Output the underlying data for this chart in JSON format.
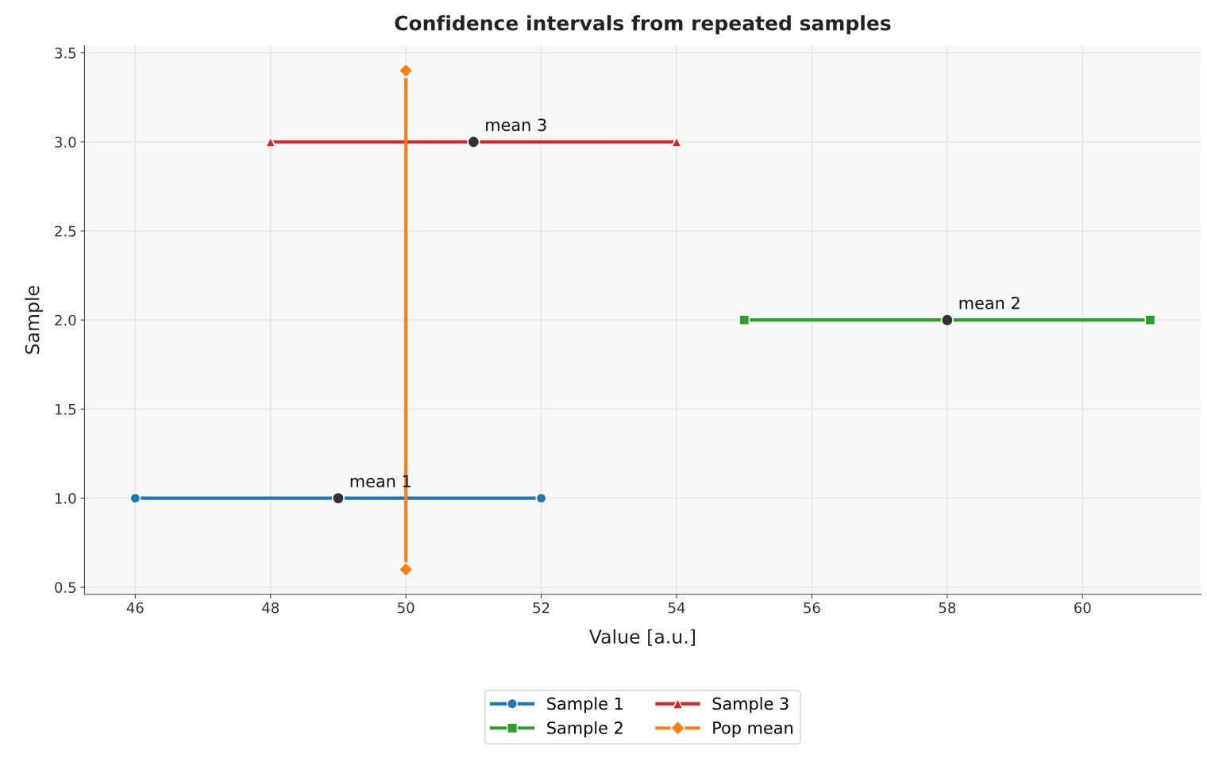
{
  "chart_data": {
    "type": "line",
    "title": "Confidence intervals from repeated samples",
    "xlabel": "Value [a.u.]",
    "ylabel": "Sample",
    "series": [
      {
        "name": "Sample 1",
        "color": "#1f77b4",
        "marker": "circle",
        "x": [
          46,
          52
        ],
        "values": [
          1.0,
          1.0
        ]
      },
      {
        "name": "Sample 2",
        "color": "#2ca02c",
        "marker": "square",
        "x": [
          55,
          61
        ],
        "values": [
          2.0,
          2.0
        ]
      },
      {
        "name": "Sample 3",
        "color": "#d62728",
        "marker": "triangle",
        "x": [
          48,
          54
        ],
        "values": [
          3.0,
          3.0
        ]
      },
      {
        "name": "Pop mean",
        "color": "#ff7f0e",
        "marker": "diamond",
        "x": [
          50,
          50
        ],
        "values": [
          0.6,
          3.4
        ]
      },
      {
        "type": "scatter",
        "color": "#333333",
        "marker": "circle",
        "x": [
          49,
          58,
          51
        ],
        "values": [
          1.0,
          2.0,
          3.0
        ]
      }
    ],
    "annotations": [
      {
        "text": "mean 1",
        "x": 49,
        "y": 1.0
      },
      {
        "text": "mean 2",
        "x": 58,
        "y": 2.0
      },
      {
        "text": "mean 3",
        "x": 51,
        "y": 3.0
      }
    ],
    "xlim": [
      45.25,
      61.75
    ],
    "xticks": [
      46,
      48,
      50,
      52,
      54,
      56,
      58,
      60
    ],
    "ylim": [
      0.46,
      3.54
    ],
    "yticks": [
      {
        "value": 0.5,
        "label": "0.5"
      },
      {
        "value": 1.0,
        "label": "1.0"
      },
      {
        "value": 1.5,
        "label": "1.5"
      },
      {
        "value": 2.0,
        "label": "2.0"
      },
      {
        "value": 2.5,
        "label": "2.5"
      },
      {
        "value": 3.0,
        "label": "3.0"
      },
      {
        "value": 3.5,
        "label": "3.5"
      }
    ],
    "grid": true,
    "legend": "bottom",
    "line_style": "solid"
  }
}
